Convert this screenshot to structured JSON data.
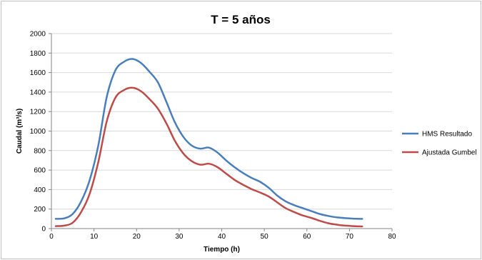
{
  "chart_data": {
    "type": "line",
    "title": "T = 5 años",
    "xlabel": "Tiempo (h)",
    "ylabel": "Caudal (m³/s)",
    "xlim": [
      0,
      80
    ],
    "ylim": [
      0,
      2000
    ],
    "xticks": [
      0,
      10,
      20,
      30,
      40,
      50,
      60,
      70,
      80
    ],
    "yticks": [
      0,
      200,
      400,
      600,
      800,
      1000,
      1200,
      1400,
      1600,
      1800,
      2000
    ],
    "grid": "horizontal",
    "legend_position": "right",
    "series": [
      {
        "name": "HMS Resultado",
        "color": "#4a7ebb",
        "x": [
          1,
          3,
          5,
          7,
          9,
          11,
          13,
          15,
          17,
          19,
          21,
          23,
          25,
          27,
          29,
          31,
          33,
          35,
          37,
          39,
          41,
          43,
          45,
          47,
          49,
          51,
          53,
          55,
          57,
          59,
          61,
          63,
          65,
          67,
          69,
          71,
          73
        ],
        "values": [
          100,
          105,
          150,
          280,
          500,
          850,
          1350,
          1620,
          1710,
          1740,
          1700,
          1610,
          1500,
          1300,
          1090,
          940,
          850,
          820,
          830,
          780,
          700,
          630,
          570,
          520,
          480,
          420,
          340,
          280,
          240,
          210,
          180,
          150,
          130,
          115,
          107,
          102,
          100
        ]
      },
      {
        "name": "Ajustada Gumbel",
        "color": "#be4b48",
        "x": [
          1,
          3,
          5,
          7,
          9,
          11,
          13,
          15,
          17,
          19,
          21,
          23,
          25,
          27,
          29,
          31,
          33,
          35,
          37,
          39,
          41,
          43,
          45,
          47,
          49,
          51,
          53,
          55,
          57,
          59,
          61,
          63,
          65,
          67,
          69,
          71,
          73
        ],
        "values": [
          25,
          30,
          60,
          170,
          360,
          680,
          1100,
          1340,
          1420,
          1445,
          1410,
          1330,
          1230,
          1080,
          900,
          770,
          690,
          655,
          665,
          630,
          565,
          500,
          450,
          405,
          370,
          330,
          270,
          210,
          170,
          135,
          110,
          80,
          55,
          40,
          30,
          25,
          22
        ]
      }
    ]
  }
}
